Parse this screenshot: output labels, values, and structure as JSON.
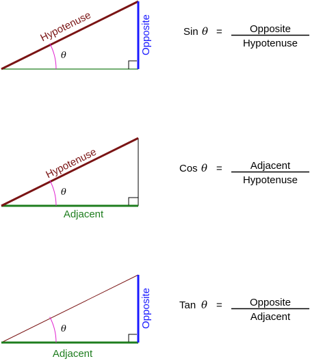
{
  "colors": {
    "hypotenuse": "#7a1414",
    "opposite": "#1a1aff",
    "adjacent": "#1e7d1e",
    "angle_arc": "#e020d0",
    "black": "#000000"
  },
  "symbols": {
    "theta": "θ",
    "equals": "="
  },
  "panels": [
    {
      "function": "Sin",
      "hypotenuse_label": "Hypotenuse",
      "opposite_label": "Opposite",
      "adjacent_label": "",
      "numerator": "Opposite",
      "denominator": "Hypotenuse"
    },
    {
      "function": "Cos",
      "hypotenuse_label": "Hypotenuse",
      "opposite_label": "",
      "adjacent_label": "Adjacent",
      "numerator": "Adjacent",
      "denominator": "Hypotenuse"
    },
    {
      "function": "Tan",
      "hypotenuse_label": "",
      "opposite_label": "Opposite",
      "adjacent_label": "Adjacent",
      "numerator": "Opposite",
      "denominator": "Adjacent"
    }
  ]
}
